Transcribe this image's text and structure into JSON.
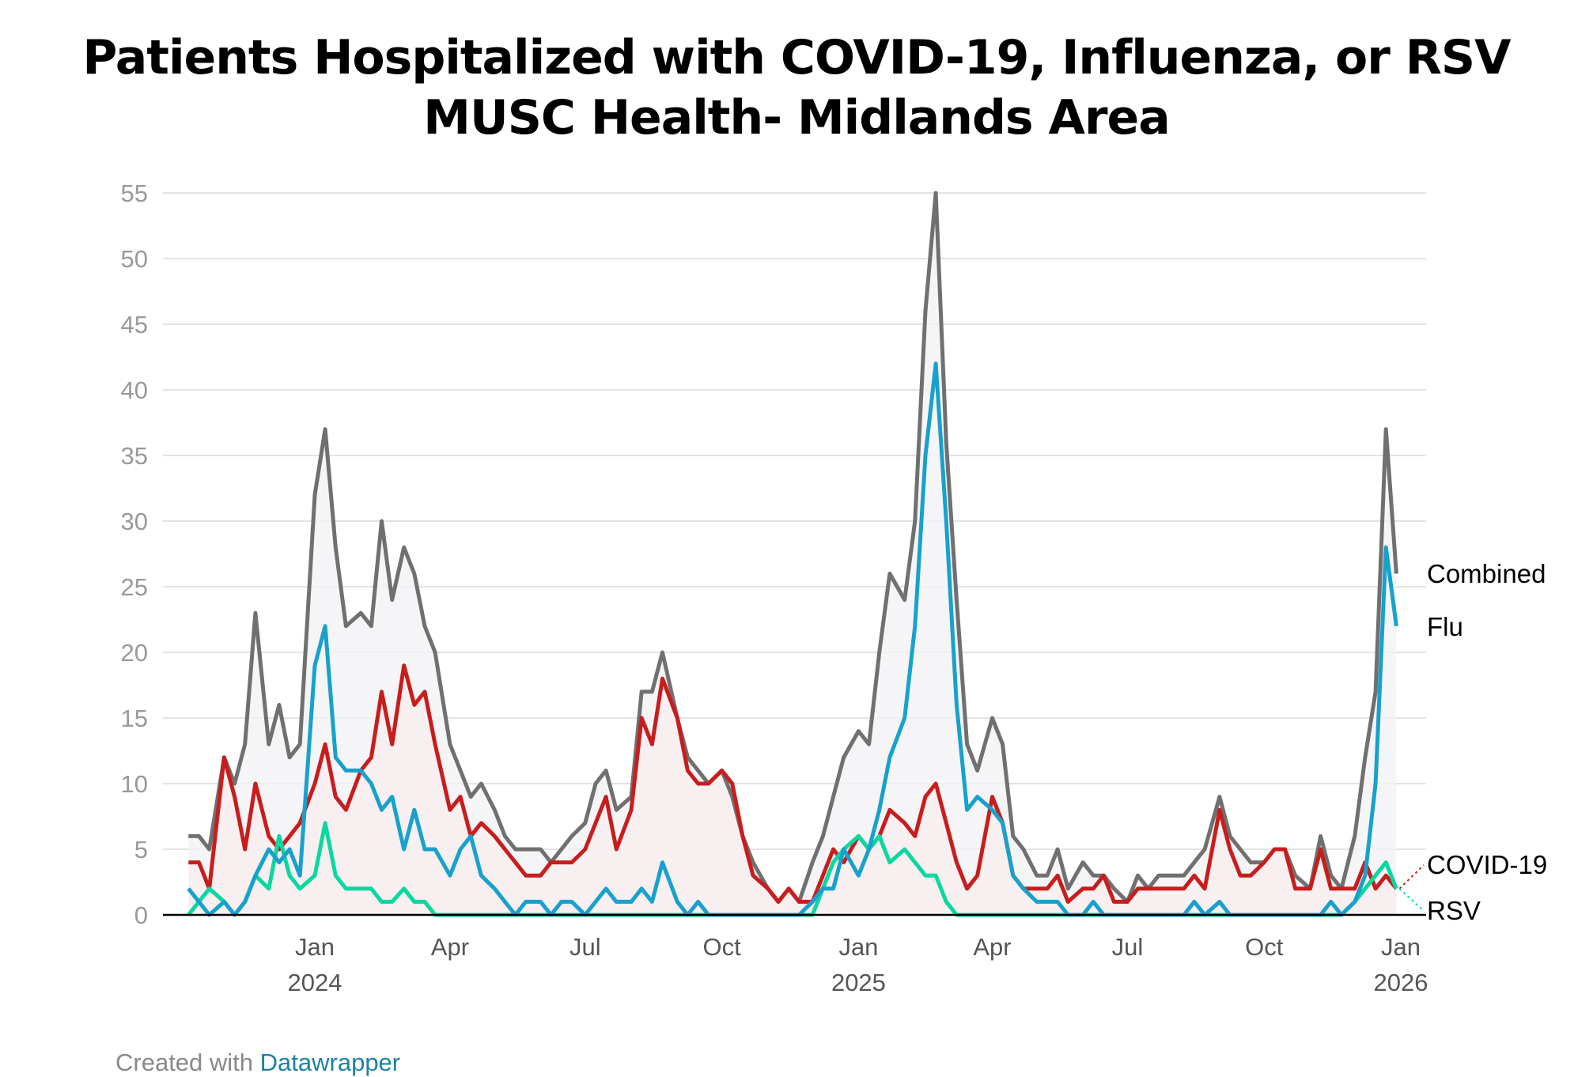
{
  "chart_data": {
    "type": "line",
    "title": "Patients Hospitalized with COVID-19, Influenza, or RSV",
    "subtitle": "MUSC Health- Midlands Area",
    "xlabel": "",
    "ylabel": "",
    "ylim": [
      0,
      55
    ],
    "yticks": [
      "0",
      "5",
      "10",
      "15",
      "20",
      "25",
      "30",
      "35",
      "40",
      "45",
      "50",
      "55"
    ],
    "xticks": [
      {
        "date": "2024-01-01",
        "label": "Jan",
        "year": "2024"
      },
      {
        "date": "2024-04-01",
        "label": "Apr",
        "year": ""
      },
      {
        "date": "2024-07-01",
        "label": "Jul",
        "year": ""
      },
      {
        "date": "2024-10-01",
        "label": "Oct",
        "year": ""
      },
      {
        "date": "2025-01-01",
        "label": "Jan",
        "year": "2025"
      },
      {
        "date": "2025-04-01",
        "label": "Apr",
        "year": ""
      },
      {
        "date": "2025-07-01",
        "label": "Jul",
        "year": ""
      },
      {
        "date": "2025-10-01",
        "label": "Oct",
        "year": ""
      },
      {
        "date": "2026-01-01",
        "label": "Jan",
        "year": "2026"
      }
    ],
    "grid": true,
    "legend": "right (direct labels at line ends)",
    "x": [
      "2023-10-08",
      "2023-10-15",
      "2023-10-22",
      "2023-11-01",
      "2023-11-08",
      "2023-11-15",
      "2023-11-22",
      "2023-12-01",
      "2023-12-08",
      "2023-12-15",
      "2023-12-22",
      "2024-01-01",
      "2024-01-08",
      "2024-01-15",
      "2024-01-22",
      "2024-02-01",
      "2024-02-08",
      "2024-02-15",
      "2024-02-22",
      "2024-03-01",
      "2024-03-08",
      "2024-03-15",
      "2024-03-22",
      "2024-04-01",
      "2024-04-08",
      "2024-04-15",
      "2024-04-22",
      "2024-05-01",
      "2024-05-08",
      "2024-05-15",
      "2024-05-22",
      "2024-06-01",
      "2024-06-08",
      "2024-06-15",
      "2024-06-22",
      "2024-07-01",
      "2024-07-08",
      "2024-07-15",
      "2024-07-22",
      "2024-08-01",
      "2024-08-08",
      "2024-08-15",
      "2024-08-22",
      "2024-09-01",
      "2024-09-08",
      "2024-09-15",
      "2024-09-22",
      "2024-10-01",
      "2024-10-08",
      "2024-10-15",
      "2024-10-22",
      "2024-11-01",
      "2024-11-08",
      "2024-11-15",
      "2024-11-22",
      "2024-12-01",
      "2024-12-08",
      "2024-12-15",
      "2024-12-22",
      "2025-01-01",
      "2025-01-08",
      "2025-01-15",
      "2025-01-22",
      "2025-02-01",
      "2025-02-08",
      "2025-02-15",
      "2025-02-22",
      "2025-03-01",
      "2025-03-08",
      "2025-03-15",
      "2025-03-22",
      "2025-04-01",
      "2025-04-08",
      "2025-04-15",
      "2025-04-22",
      "2025-05-01",
      "2025-05-08",
      "2025-05-15",
      "2025-05-22",
      "2025-06-01",
      "2025-06-08",
      "2025-06-15",
      "2025-06-22",
      "2025-07-01",
      "2025-07-08",
      "2025-07-15",
      "2025-07-22",
      "2025-08-01",
      "2025-08-08",
      "2025-08-15",
      "2025-08-22",
      "2025-09-01",
      "2025-09-08",
      "2025-09-15",
      "2025-09-22",
      "2025-10-01",
      "2025-10-08",
      "2025-10-15",
      "2025-10-22",
      "2025-11-01",
      "2025-11-08",
      "2025-11-15",
      "2025-11-22",
      "2025-12-01",
      "2025-12-08",
      "2025-12-15",
      "2025-12-22",
      "2025-12-29"
    ],
    "series": [
      {
        "name": "Combined",
        "color": "#707070",
        "fill": "#f3f3f5",
        "values": [
          6,
          6,
          5,
          12,
          10,
          13,
          23,
          13,
          16,
          12,
          13,
          32,
          37,
          28,
          22,
          23,
          22,
          30,
          24,
          28,
          26,
          22,
          20,
          13,
          11,
          9,
          10,
          8,
          6,
          5,
          5,
          5,
          4,
          5,
          6,
          7,
          10,
          11,
          8,
          9,
          17,
          17,
          20,
          15,
          12,
          11,
          10,
          11,
          9,
          6,
          4,
          2,
          1,
          2,
          1,
          4,
          6,
          9,
          12,
          14,
          13,
          20,
          26,
          24,
          30,
          46,
          55,
          36,
          24,
          13,
          11,
          15,
          13,
          6,
          5,
          3,
          3,
          5,
          2,
          4,
          3,
          3,
          2,
          1,
          3,
          2,
          3,
          3,
          3,
          4,
          5,
          9,
          6,
          5,
          4,
          4,
          5,
          5,
          3,
          2,
          6,
          3,
          2,
          6,
          12,
          17,
          37,
          26
        ]
      },
      {
        "name": "Flu",
        "color": "#18a1cd",
        "fill": "none",
        "values": [
          2,
          1,
          0,
          1,
          0,
          1,
          3,
          5,
          4,
          5,
          3,
          19,
          22,
          12,
          11,
          11,
          10,
          8,
          9,
          5,
          8,
          5,
          5,
          3,
          5,
          6,
          3,
          2,
          1,
          0,
          1,
          1,
          0,
          1,
          1,
          0,
          1,
          2,
          1,
          1,
          2,
          1,
          4,
          1,
          0,
          1,
          0,
          0,
          0,
          0,
          0,
          0,
          0,
          0,
          0,
          1,
          2,
          2,
          5,
          3,
          5,
          8,
          12,
          15,
          22,
          35,
          42,
          30,
          16,
          8,
          9,
          8,
          7,
          3,
          2,
          1,
          1,
          1,
          0,
          0,
          1,
          0,
          0,
          0,
          0,
          0,
          0,
          0,
          0,
          1,
          0,
          1,
          0,
          0,
          0,
          0,
          0,
          0,
          0,
          0,
          0,
          1,
          0,
          1,
          3,
          10,
          28,
          22
        ]
      },
      {
        "name": "COVID-19",
        "color": "#c71e1d",
        "fill": "#f7eeee",
        "values": [
          4,
          4,
          2,
          12,
          9,
          5,
          10,
          6,
          5,
          6,
          7,
          10,
          13,
          9,
          8,
          11,
          12,
          17,
          13,
          19,
          16,
          17,
          13,
          8,
          9,
          6,
          7,
          6,
          5,
          4,
          3,
          3,
          4,
          4,
          4,
          5,
          7,
          9,
          5,
          8,
          15,
          13,
          18,
          15,
          11,
          10,
          10,
          11,
          10,
          6,
          3,
          2,
          1,
          2,
          1,
          1,
          3,
          5,
          4,
          6,
          5,
          6,
          8,
          7,
          6,
          9,
          10,
          7,
          4,
          2,
          3,
          9,
          7,
          3,
          2,
          2,
          2,
          3,
          1,
          2,
          2,
          3,
          1,
          1,
          2,
          2,
          2,
          2,
          2,
          3,
          2,
          8,
          5,
          3,
          3,
          4,
          5,
          5,
          2,
          2,
          5,
          2,
          2,
          2,
          4,
          2,
          3,
          2
        ]
      },
      {
        "name": "RSV",
        "color": "#09d89f",
        "fill": "none",
        "values": [
          0,
          1,
          2,
          1,
          0,
          1,
          3,
          2,
          6,
          3,
          2,
          3,
          7,
          3,
          2,
          2,
          2,
          1,
          1,
          2,
          1,
          1,
          0,
          0,
          0,
          0,
          0,
          0,
          0,
          0,
          0,
          0,
          0,
          0,
          0,
          0,
          0,
          0,
          0,
          0,
          0,
          0,
          0,
          0,
          0,
          0,
          0,
          0,
          0,
          0,
          0,
          0,
          0,
          0,
          0,
          0,
          2,
          4,
          5,
          6,
          5,
          6,
          4,
          5,
          4,
          3,
          3,
          1,
          0,
          0,
          0,
          0,
          0,
          0,
          0,
          0,
          0,
          0,
          0,
          0,
          0,
          0,
          0,
          0,
          0,
          0,
          0,
          0,
          0,
          0,
          0,
          0,
          0,
          0,
          0,
          0,
          0,
          0,
          0,
          0,
          0,
          0,
          0,
          1,
          2,
          3,
          4,
          2
        ]
      }
    ]
  },
  "footer": {
    "prefix": "Created with ",
    "link": "Datawrapper"
  }
}
